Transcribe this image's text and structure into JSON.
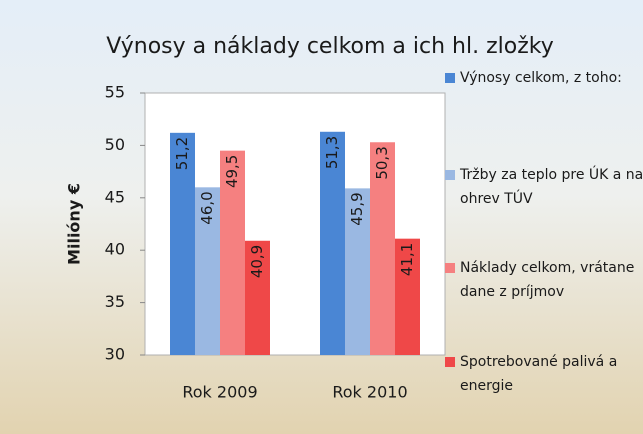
{
  "chart_data": {
    "type": "bar",
    "title": "Výnosy a náklady celkom a ich hl. zložky",
    "y_label": "Milióny €",
    "categories": [
      "Rok 2009",
      "Rok 2010"
    ],
    "series": [
      {
        "name": "Výnosy celkom, z toho:",
        "color": "#4a86d4",
        "values": [
          51.2,
          51.3
        ],
        "value_labels": [
          "51,2",
          "51,3"
        ]
      },
      {
        "name": "Tržby za teplo pre ÚK a na ohrev TÚV",
        "color": "#9ab8e2",
        "values": [
          46.0,
          45.9
        ],
        "value_labels": [
          "46,0",
          "45,9"
        ]
      },
      {
        "name": "Náklady celkom, vrátane dane z príjmov",
        "color": "#f58080",
        "values": [
          49.5,
          50.3
        ],
        "value_labels": [
          "49,5",
          "50,3"
        ]
      },
      {
        "name": "Spotrebované palivá a energie",
        "color": "#ef4848",
        "values": [
          40.9,
          41.1
        ],
        "value_labels": [
          "40,9",
          "41,1"
        ]
      }
    ],
    "ylim": [
      30,
      55
    ],
    "yticks": [
      30,
      35,
      40,
      45,
      50,
      55
    ],
    "legend": "right"
  }
}
